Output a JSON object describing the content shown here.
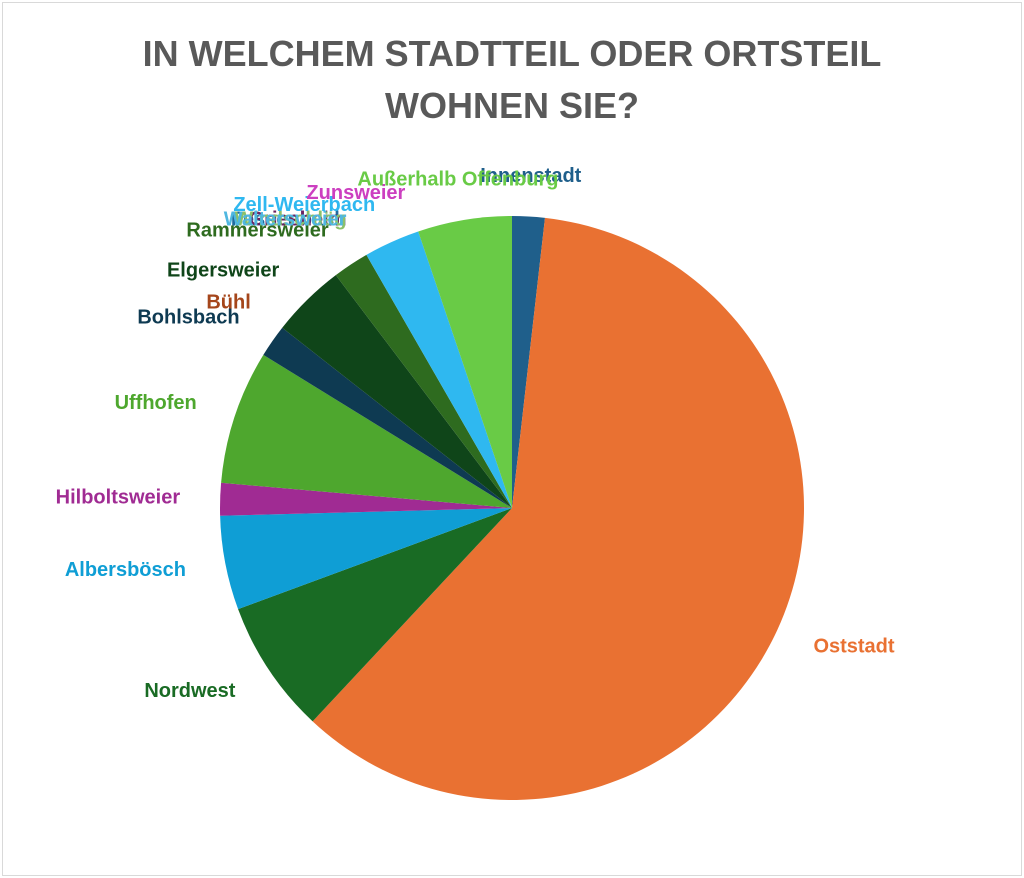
{
  "chart_data": {
    "type": "pie",
    "title": "IN WELCHEM STADTTEIL ODER ORTSTEIL WOHNEN SIE?",
    "categories": [
      "Innenstadt",
      "Oststadt",
      "Nordwest",
      "Albersbösch",
      "Hilboltsweier",
      "Uffhofen",
      "Bohlsbach",
      "Bühl",
      "Elgersweier",
      "Rammersweier",
      "Fessenbach",
      "Griesheim",
      "Windschläg",
      "Waltersweier",
      "Zell-Weierbach",
      "Zunsweier",
      "Außerhalb Offenburg"
    ],
    "values": [
      1.8,
      60.1,
      7.4,
      5.2,
      1.8,
      7.4,
      1.8,
      0,
      4.1,
      2.0,
      0,
      0,
      0,
      0,
      3.1,
      0,
      5.2
    ],
    "colors": [
      "#1f5f8b",
      "#e97132",
      "#196b24",
      "#0f9ed5",
      "#a02b93",
      "#4ea72e",
      "#0e3a52",
      "#a5461b",
      "#0f4519",
      "#2e6b1f",
      "#1f6b9e",
      "#6b2060",
      "#8bc06a",
      "#4fb7e0",
      "#2fb8f0",
      "#cc3fc0",
      "#69cb46"
    ]
  }
}
